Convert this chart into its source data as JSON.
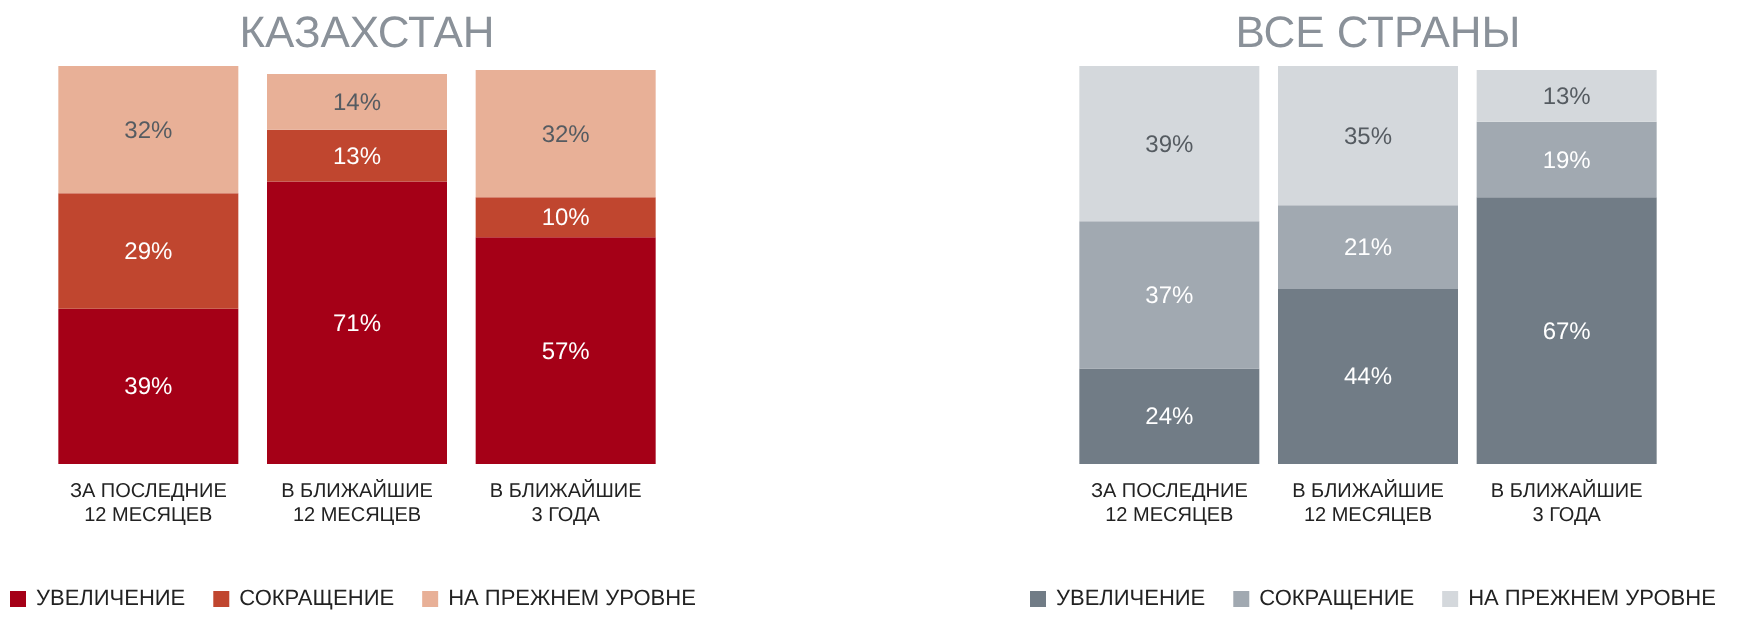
{
  "chart_data": [
    {
      "type": "bar",
      "title": "КАЗАХСТАН",
      "stacked": true,
      "legend": "bottom",
      "categories": [
        "ЗА ПОСЛЕДНИЕ\n12 МЕСЯЦЕВ",
        "В БЛИЖАЙШИЕ\n12 МЕСЯЦЕВ",
        "В БЛИЖАЙШИЕ\n3 ГОДА"
      ],
      "series": [
        {
          "name": "УВЕЛИЧЕНИЕ",
          "color": "#a50017",
          "values": [
            39,
            71,
            57
          ],
          "value_labels": [
            "39%",
            "71%",
            "57%"
          ]
        },
        {
          "name": "СОКРАЩЕНИЕ",
          "color": "#c0462f",
          "values": [
            29,
            13,
            10
          ],
          "value_labels": [
            "29%",
            "13%",
            "10%"
          ]
        },
        {
          "name": "НА ПРЕЖНЕМ УРОВНЕ",
          "color": "#e8b097",
          "values": [
            32,
            14,
            32
          ],
          "value_labels": [
            "32%",
            "14%",
            "32%"
          ]
        }
      ]
    },
    {
      "type": "bar",
      "title": "ВСЕ СТРАНЫ",
      "stacked": true,
      "legend": "bottom",
      "categories": [
        "ЗА ПОСЛЕДНИЕ\n12 МЕСЯЦЕВ",
        "В БЛИЖАЙШИЕ\n12 МЕСЯЦЕВ",
        "В БЛИЖАЙШИЕ\n3 ГОДА"
      ],
      "series": [
        {
          "name": "УВЕЛИЧЕНИЕ",
          "color": "#717c86",
          "values": [
            24,
            44,
            67
          ],
          "value_labels": [
            "24%",
            "44%",
            "67%"
          ]
        },
        {
          "name": "СОКРАЩЕНИЕ",
          "color": "#a1a9b1",
          "values": [
            37,
            21,
            19
          ],
          "value_labels": [
            "37%",
            "21%",
            "19%"
          ]
        },
        {
          "name": "НА ПРЕЖНЕМ УРОВНЕ",
          "color": "#d4d8dc",
          "values": [
            39,
            35,
            13
          ],
          "value_labels": [
            "39%",
            "35%",
            "13%"
          ]
        }
      ]
    }
  ]
}
